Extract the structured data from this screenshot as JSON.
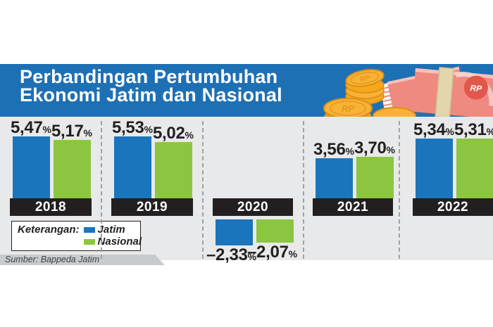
{
  "header": {
    "title_line1": "Perbandingan Pertumbuhan",
    "title_line2": "Ekonomi Jatim dan Nasional",
    "illustration": {
      "currency_label": "RP"
    }
  },
  "legend": {
    "heading": "Keterangan:",
    "items": [
      {
        "label": "Jatim",
        "color": "#1b75bc"
      },
      {
        "label": "Nasional",
        "color": "#8cc640"
      }
    ]
  },
  "source": "Sumber: Bappeda Jatim",
  "colors": {
    "header_blue": "#1e70b5",
    "panel_gray": "#e8e9ea",
    "separator_gray": "#9fa1a4",
    "text_dark": "#231f20"
  },
  "chart_data": {
    "type": "bar",
    "title": "Perbandingan Pertumbuhan Ekonomi Jatim dan Nasional",
    "categories": [
      "2018",
      "2019",
      "2020",
      "2021",
      "2022"
    ],
    "series": [
      {
        "name": "Jatim",
        "color": "#1b75bc",
        "values": [
          5.47,
          5.53,
          -2.33,
          3.56,
          5.34
        ],
        "labels": [
          "5,47",
          "5,53",
          "–2,33",
          "3,56",
          "5,34"
        ]
      },
      {
        "name": "Nasional",
        "color": "#8cc640",
        "values": [
          5.17,
          5.02,
          -2.07,
          3.7,
          5.31
        ],
        "labels": [
          "5,17",
          "5,02",
          "–2,07",
          "3,70",
          "5,31"
        ]
      }
    ],
    "unit": "%",
    "ylim": [
      -2.5,
      6
    ],
    "grid": false,
    "legend_position": "bottom-left",
    "band_color": "#231f20",
    "band_text_color": "#ffffff",
    "xlabel": "",
    "ylabel": ""
  }
}
